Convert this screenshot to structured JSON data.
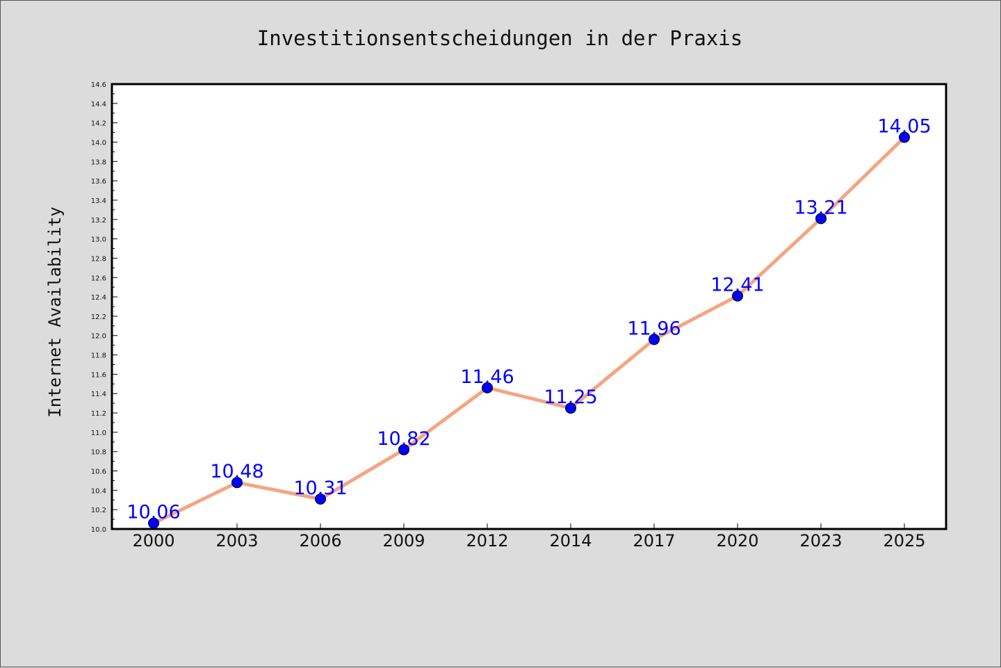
{
  "chart_data": {
    "type": "line",
    "title": "Investitionsentscheidungen in der Praxis",
    "xlabel": "",
    "ylabel": "Internet Availability",
    "categories": [
      "2000",
      "2003",
      "2006",
      "2009",
      "2012",
      "2014",
      "2017",
      "2020",
      "2023",
      "2025"
    ],
    "series": [
      {
        "values": [
          10.06,
          10.48,
          10.31,
          10.82,
          11.46,
          11.25,
          11.96,
          12.41,
          13.21,
          14.05
        ],
        "line_color": "#f4a582",
        "marker_color": "#0000ff"
      }
    ],
    "data_labels": [
      "10.06",
      "10.48",
      "10.31",
      "10.82",
      "11.46",
      "11.25",
      "11.96",
      "12.41",
      "13.21",
      "14.05"
    ],
    "ylim": [
      10.0,
      14.6
    ],
    "yticks": [
      "10.0",
      "10.2",
      "10.4",
      "10.6",
      "10.8",
      "11.0",
      "11.2",
      "11.4",
      "11.6",
      "11.8",
      "12.0",
      "12.2",
      "12.4",
      "12.6",
      "12.8",
      "13.0",
      "13.2",
      "13.4",
      "13.6",
      "13.8",
      "14.0",
      "14.2",
      "14.4",
      "14.6"
    ],
    "grid": false,
    "legend": "none",
    "colors": {
      "background": "#dcdcdc",
      "plot_background": "#ffffff",
      "label": "#0000ff"
    }
  }
}
